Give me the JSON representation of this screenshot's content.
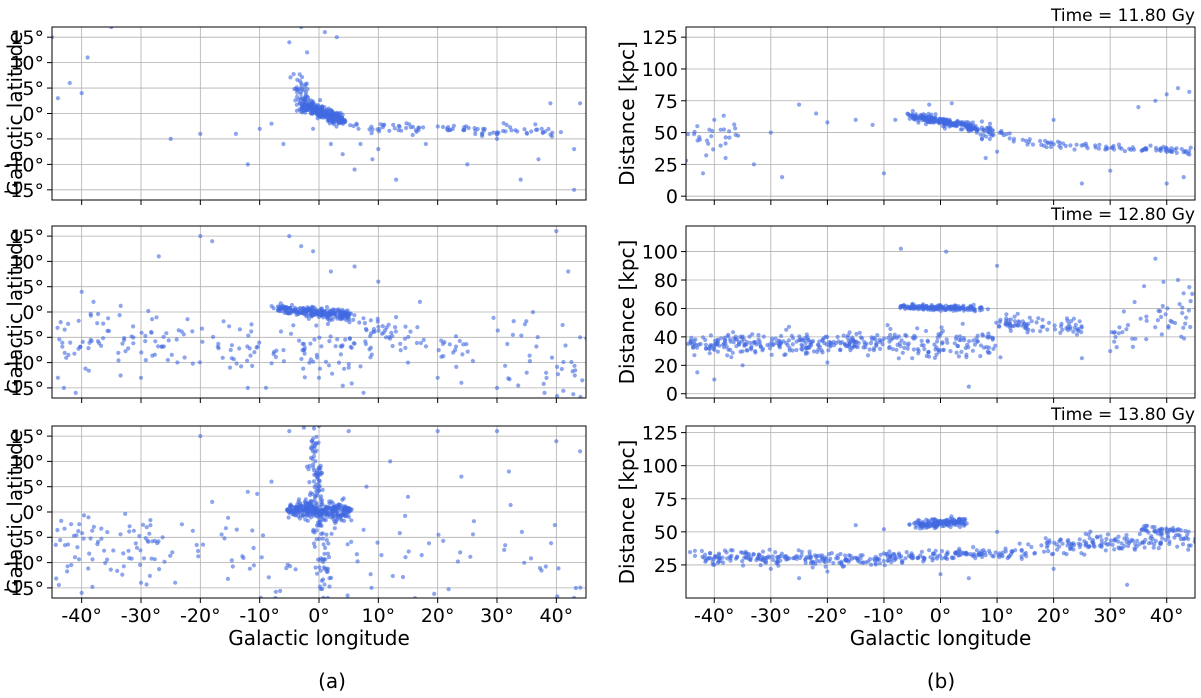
{
  "figure": {
    "caption_left": "(a)",
    "caption_right": "(b)"
  },
  "colors": {
    "points": "#4169e1"
  },
  "chart_data": [
    {
      "type": "scatter",
      "panel": "a-1",
      "xlabel": "",
      "ylabel": "Galactic latitude",
      "xlim": [
        -45,
        45
      ],
      "ylim": [
        -17,
        17
      ],
      "xticks": [
        -40,
        -30,
        -20,
        -10,
        0,
        10,
        20,
        30,
        40
      ],
      "yticks": [
        -15,
        -10,
        -5,
        0,
        5,
        10,
        15
      ],
      "xtick_labels": [],
      "ytick_labels": [
        "-15°",
        "-10°",
        "-5°",
        "0°",
        "5°",
        "10°",
        "15°"
      ],
      "grid": true,
      "clusters": [
        {
          "x0": -3,
          "x1": 4,
          "y0": 2,
          "y1": -1.5,
          "spread": 0.6,
          "n": 260
        },
        {
          "x0": -4,
          "x1": -2,
          "y0": 8,
          "y1": 2,
          "spread": 0.8,
          "n": 40
        },
        {
          "x0": 5,
          "x1": 40,
          "y0": -2.5,
          "y1": -3.8,
          "spread": 0.5,
          "n": 90
        }
      ],
      "points": [
        [
          -44,
          3
        ],
        [
          -42,
          6
        ],
        [
          -40,
          4
        ],
        [
          -39,
          11
        ],
        [
          -25,
          -5
        ],
        [
          -20,
          -4
        ],
        [
          -14,
          -4
        ],
        [
          -12,
          -10
        ],
        [
          -10,
          -3
        ],
        [
          -6,
          -6
        ],
        [
          -5,
          14
        ],
        [
          -3,
          17
        ],
        [
          -2,
          12
        ],
        [
          1,
          16
        ],
        [
          3,
          15
        ],
        [
          4,
          -8
        ],
        [
          7,
          -6
        ],
        [
          9,
          -9
        ],
        [
          13,
          -13
        ],
        [
          25,
          -10
        ],
        [
          30,
          -5
        ],
        [
          34,
          -13
        ],
        [
          37,
          -9
        ],
        [
          39,
          2
        ],
        [
          43,
          -7
        ],
        [
          43,
          -15
        ],
        [
          44,
          2
        ],
        [
          -45,
          15
        ],
        [
          -35,
          17
        ],
        [
          18,
          -6
        ],
        [
          -1,
          -3
        ],
        [
          2,
          -6
        ],
        [
          6,
          -11
        ],
        [
          10,
          -7
        ],
        [
          -8,
          -2
        ]
      ]
    },
    {
      "type": "scatter",
      "panel": "a-2",
      "xlabel": "",
      "ylabel": "Galactic latitude",
      "xlim": [
        -45,
        45
      ],
      "ylim": [
        -17,
        17
      ],
      "xticks": [
        -40,
        -30,
        -20,
        -10,
        0,
        10,
        20,
        30,
        40
      ],
      "yticks": [
        -15,
        -10,
        -5,
        0,
        5,
        10,
        15
      ],
      "xtick_labels": [],
      "ytick_labels": [
        "-15°",
        "-10°",
        "-5°",
        "0°",
        "5°",
        "10°",
        "15°"
      ],
      "grid": true,
      "clusters": [
        {
          "x0": -7,
          "x1": 5,
          "y0": 0.6,
          "y1": -0.6,
          "spread": 0.5,
          "n": 230
        },
        {
          "x0": 5,
          "x1": 25,
          "y0": -2,
          "y1": -8,
          "spread": 1.5,
          "n": 60
        },
        {
          "x0": -45,
          "x1": -10,
          "y0": -5,
          "y1": -7,
          "spread": 3,
          "n": 110
        },
        {
          "x0": -8,
          "x1": 10,
          "y0": -8,
          "y1": -8,
          "spread": 4,
          "n": 70
        },
        {
          "x0": 30,
          "x1": 45,
          "y0": -8,
          "y1": -10,
          "spread": 4,
          "n": 40
        }
      ],
      "points": [
        [
          -44,
          -13
        ],
        [
          -43,
          -15
        ],
        [
          -41,
          -16
        ],
        [
          -40,
          4
        ],
        [
          -38,
          2
        ],
        [
          -27,
          11
        ],
        [
          -20,
          15
        ],
        [
          -18,
          14
        ],
        [
          -5,
          15
        ],
        [
          -3,
          13
        ],
        [
          -1,
          12
        ],
        [
          2,
          8
        ],
        [
          6,
          9
        ],
        [
          10,
          6
        ],
        [
          13,
          -1
        ],
        [
          17,
          2
        ],
        [
          20,
          -13
        ],
        [
          24,
          -14
        ],
        [
          30,
          -15
        ],
        [
          35,
          -12
        ],
        [
          38,
          -16
        ],
        [
          40,
          16
        ],
        [
          42,
          8
        ],
        [
          44,
          -5
        ],
        [
          -12,
          -15
        ],
        [
          -30,
          -13
        ],
        [
          -15,
          -11
        ],
        [
          0,
          -13
        ],
        [
          5,
          -11
        ],
        [
          15,
          -10
        ]
      ]
    },
    {
      "type": "scatter",
      "panel": "a-3",
      "xlabel": "Galactic longitude",
      "ylabel": "Galactic latitude",
      "xlim": [
        -45,
        45
      ],
      "ylim": [
        -17,
        17
      ],
      "xticks": [
        -40,
        -30,
        -20,
        -10,
        0,
        10,
        20,
        30,
        40
      ],
      "yticks": [
        -15,
        -10,
        -5,
        0,
        5,
        10,
        15
      ],
      "xtick_labels": [
        "-40°",
        "-30°",
        "-20°",
        "-10°",
        "0°",
        "10°",
        "20°",
        "30°",
        "40°"
      ],
      "ytick_labels": [
        "-15°",
        "-10°",
        "-5°",
        "0°",
        "5°",
        "10°",
        "15°"
      ],
      "grid": true,
      "clusters": [
        {
          "x0": -5,
          "x1": 5,
          "y0": 0.5,
          "y1": 0,
          "spread": 0.8,
          "n": 300
        },
        {
          "x0": -1,
          "x1": 1,
          "y0": 14,
          "y1": -14,
          "spread": 1.8,
          "n": 130
        },
        {
          "x0": -45,
          "x1": -25,
          "y0": -5,
          "y1": -7,
          "spread": 3.5,
          "n": 80
        },
        {
          "x0": -25,
          "x1": 45,
          "y0": -8,
          "y1": -8,
          "spread": 5.5,
          "n": 90
        }
      ],
      "points": [
        [
          -20,
          15
        ],
        [
          -5,
          16
        ],
        [
          0,
          17
        ],
        [
          5,
          16
        ],
        [
          20,
          16
        ],
        [
          30,
          16
        ],
        [
          40,
          14
        ],
        [
          44,
          12
        ],
        [
          43,
          -17
        ],
        [
          32,
          8
        ],
        [
          24,
          7
        ],
        [
          12,
          10
        ],
        [
          -12,
          4
        ],
        [
          -18,
          2
        ],
        [
          -8,
          6
        ],
        [
          8,
          5
        ],
        [
          15,
          3
        ],
        [
          -30,
          -14
        ],
        [
          -40,
          -16
        ]
      ]
    },
    {
      "type": "scatter",
      "panel": "b-1",
      "title": "Time = 11.80 Gy",
      "xlabel": "",
      "ylabel": "Distance  [kpc]",
      "xlim": [
        -45,
        45
      ],
      "ylim": [
        -3,
        133
      ],
      "xticks": [
        -40,
        -30,
        -20,
        -10,
        0,
        10,
        20,
        30,
        40
      ],
      "yticks": [
        0,
        25,
        50,
        75,
        100,
        125
      ],
      "xtick_labels": [],
      "ytick_labels": [
        "0",
        "25",
        "50",
        "75",
        "100",
        "125"
      ],
      "grid": true,
      "clusters": [
        {
          "x0": -5,
          "x1": 6,
          "y0": 63,
          "y1": 54,
          "spread": 1.5,
          "n": 220
        },
        {
          "x0": 6,
          "x1": 12,
          "y0": 52,
          "y1": 48,
          "spread": 3,
          "n": 40
        },
        {
          "x0": 15,
          "x1": 45,
          "y0": 42,
          "y1": 35,
          "spread": 1.5,
          "n": 90
        },
        {
          "x0": -45,
          "x1": -35,
          "y0": 40,
          "y1": 50,
          "spread": 8,
          "n": 25
        }
      ],
      "points": [
        [
          -43,
          55
        ],
        [
          -40,
          60
        ],
        [
          -38,
          30
        ],
        [
          -33,
          25
        ],
        [
          -30,
          50
        ],
        [
          -25,
          72
        ],
        [
          -22,
          65
        ],
        [
          -20,
          58
        ],
        [
          -15,
          60
        ],
        [
          -12,
          56
        ],
        [
          -10,
          18
        ],
        [
          -8,
          60
        ],
        [
          -2,
          72
        ],
        [
          2,
          73
        ],
        [
          8,
          30
        ],
        [
          10,
          35
        ],
        [
          13,
          45
        ],
        [
          20,
          60
        ],
        [
          30,
          20
        ],
        [
          35,
          70
        ],
        [
          38,
          75
        ],
        [
          40,
          80
        ],
        [
          42,
          85
        ],
        [
          44,
          82
        ],
        [
          43,
          15
        ],
        [
          40,
          10
        ],
        [
          25,
          10
        ],
        [
          -45,
          28
        ],
        [
          -42,
          18
        ],
        [
          -28,
          15
        ]
      ]
    },
    {
      "type": "scatter",
      "panel": "b-2",
      "title": "Time = 12.80 Gy",
      "xlabel": "",
      "ylabel": "Distance  [kpc]",
      "xlim": [
        -45,
        45
      ],
      "ylim": [
        -3,
        118
      ],
      "xticks": [
        -40,
        -30,
        -20,
        -10,
        0,
        10,
        20,
        30,
        40
      ],
      "yticks": [
        0,
        20,
        40,
        60,
        80,
        100
      ],
      "xtick_labels": [],
      "ytick_labels": [
        "0",
        "20",
        "40",
        "60",
        "80",
        "100"
      ],
      "grid": true,
      "clusters": [
        {
          "x0": -7,
          "x1": 7,
          "y0": 61,
          "y1": 60,
          "spread": 1,
          "n": 160
        },
        {
          "x0": -45,
          "x1": -10,
          "y0": 35,
          "y1": 36,
          "spread": 3.5,
          "n": 260
        },
        {
          "x0": -10,
          "x1": 10,
          "y0": 37,
          "y1": 36,
          "spread": 5,
          "n": 120
        },
        {
          "x0": 10,
          "x1": 25,
          "y0": 50,
          "y1": 46,
          "spread": 2.5,
          "n": 80
        },
        {
          "x0": 30,
          "x1": 45,
          "y0": 45,
          "y1": 55,
          "spread": 10,
          "n": 50
        }
      ],
      "points": [
        [
          -7,
          102
        ],
        [
          1,
          100
        ],
        [
          10,
          90
        ],
        [
          38,
          95
        ],
        [
          42,
          80
        ],
        [
          44,
          75
        ],
        [
          5,
          5
        ],
        [
          -43,
          15
        ],
        [
          -40,
          10
        ],
        [
          -35,
          20
        ],
        [
          -20,
          22
        ],
        [
          -5,
          25
        ],
        [
          25,
          25
        ],
        [
          30,
          30
        ]
      ]
    },
    {
      "type": "scatter",
      "panel": "b-3",
      "title": "Time = 13.80 Gy",
      "xlabel": "Galactic longitude",
      "ylabel": "Distance  [kpc]",
      "xlim": [
        -45,
        45
      ],
      "ylim": [
        0,
        130
      ],
      "xticks": [
        -40,
        -30,
        -20,
        -10,
        0,
        10,
        20,
        30,
        40
      ],
      "yticks": [
        25,
        50,
        75,
        100,
        125
      ],
      "xtick_labels": [
        "-40°",
        "-30°",
        "-20°",
        "-10°",
        "0°",
        "10°",
        "20°",
        "30°",
        "40°"
      ],
      "ytick_labels": [
        "25",
        "50",
        "75",
        "100",
        "125"
      ],
      "grid": true,
      "clusters": [
        {
          "x0": -4,
          "x1": 4,
          "y0": 55,
          "y1": 58,
          "spread": 1.5,
          "n": 150
        },
        {
          "x0": -45,
          "x1": -10,
          "y0": 32,
          "y1": 28,
          "spread": 2.5,
          "n": 200
        },
        {
          "x0": -10,
          "x1": 15,
          "y0": 30,
          "y1": 35,
          "spread": 2,
          "n": 130
        },
        {
          "x0": 15,
          "x1": 45,
          "y0": 38,
          "y1": 45,
          "spread": 3.5,
          "n": 150
        },
        {
          "x0": 35,
          "x1": 45,
          "y0": 52,
          "y1": 50,
          "spread": 1.5,
          "n": 40
        }
      ],
      "points": [
        [
          -10,
          52
        ],
        [
          -15,
          55
        ],
        [
          10,
          50
        ],
        [
          -20,
          20
        ],
        [
          -25,
          15
        ],
        [
          0,
          18
        ],
        [
          5,
          15
        ],
        [
          20,
          22
        ],
        [
          33,
          10
        ],
        [
          -30,
          22
        ],
        [
          -40,
          25
        ]
      ]
    }
  ]
}
